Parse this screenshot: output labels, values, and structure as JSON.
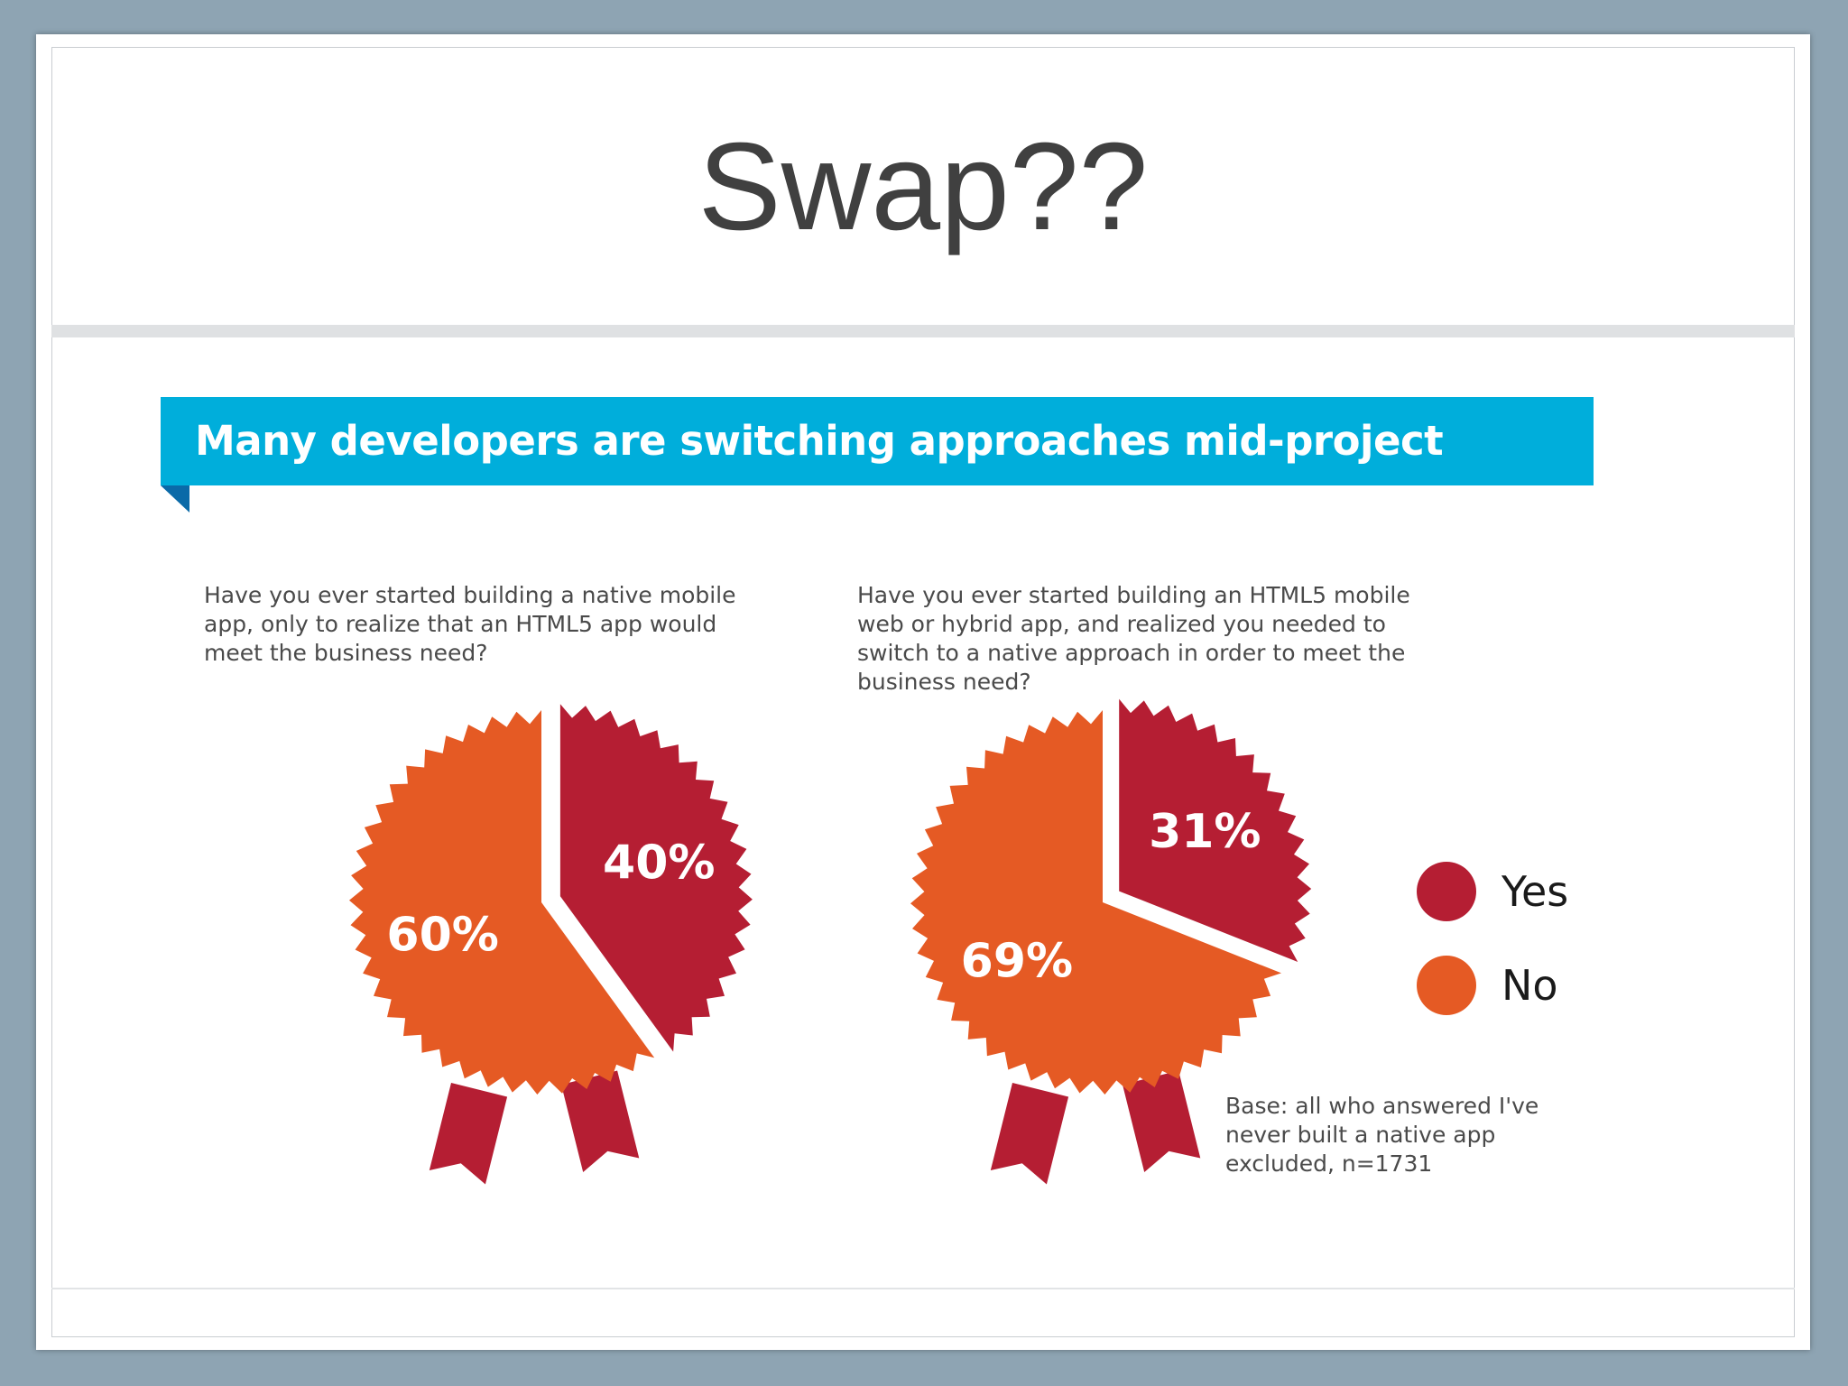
{
  "slide": {
    "title": "Swap??"
  },
  "banner": {
    "title": "Many developers are switching approaches mid-project"
  },
  "colors": {
    "yes": "#b51e33",
    "no": "#e55a24",
    "banner": "#00aedb",
    "background": "#8ea4b3"
  },
  "chart_data": [
    {
      "type": "pie",
      "title": "Have you ever started building a native mobile app, only to realize that an HTML5 app would meet the business need?",
      "slices": [
        {
          "name": "Yes",
          "value": 40,
          "label": "40%"
        },
        {
          "name": "No",
          "value": 60,
          "label": "60%"
        }
      ]
    },
    {
      "type": "pie",
      "title": "Have you ever started building an HTML5 mobile web or hybrid app, and realized you needed to switch to a native approach in order to meet the business need?",
      "slices": [
        {
          "name": "Yes",
          "value": 31,
          "label": "31%"
        },
        {
          "name": "No",
          "value": 69,
          "label": "69%"
        }
      ]
    }
  ],
  "legend": [
    {
      "label": "Yes",
      "color": "#b51e33"
    },
    {
      "label": "No",
      "color": "#e55a24"
    }
  ],
  "note": "Base: all who answered I've never built a native app excluded, n=1731"
}
